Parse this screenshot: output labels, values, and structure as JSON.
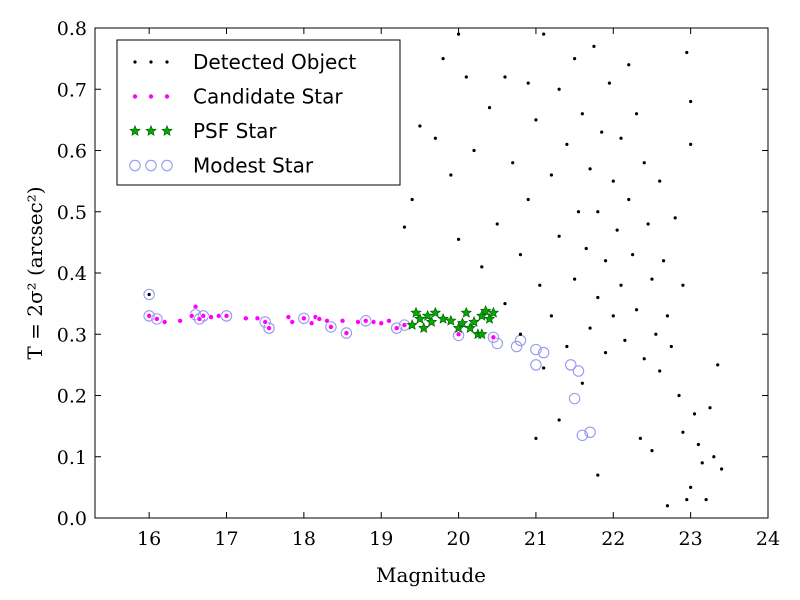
{
  "chart_data": {
    "type": "scatter",
    "xlabel": "Magnitude",
    "ylabel": "T = 2σ² (arcsec²)",
    "xlim": [
      15.3,
      24.0
    ],
    "ylim": [
      0.0,
      0.8
    ],
    "x_ticks": [
      16,
      17,
      18,
      19,
      20,
      21,
      22,
      23,
      24
    ],
    "y_ticks": [
      0.0,
      0.1,
      0.2,
      0.3,
      0.4,
      0.5,
      0.6,
      0.7,
      0.8
    ],
    "x_tick_labels": [
      "16",
      "17",
      "18",
      "19",
      "20",
      "21",
      "22",
      "23",
      "24"
    ],
    "y_tick_labels": [
      "0.0",
      "0.1",
      "0.2",
      "0.3",
      "0.4",
      "0.5",
      "0.6",
      "0.7",
      "0.8"
    ],
    "grid": false,
    "legend_position": "top-left",
    "series": [
      {
        "name": "Detected Object",
        "marker": "dot",
        "color": "#000000",
        "points": [
          [
            16.0,
            0.365
          ],
          [
            19.3,
            0.475
          ],
          [
            19.4,
            0.52
          ],
          [
            19.5,
            0.64
          ],
          [
            19.7,
            0.62
          ],
          [
            19.8,
            0.75
          ],
          [
            19.9,
            0.56
          ],
          [
            20.0,
            0.79
          ],
          [
            20.0,
            0.455
          ],
          [
            20.1,
            0.72
          ],
          [
            20.2,
            0.6
          ],
          [
            20.3,
            0.41
          ],
          [
            20.4,
            0.67
          ],
          [
            20.5,
            0.48
          ],
          [
            20.6,
            0.72
          ],
          [
            20.6,
            0.35
          ],
          [
            20.7,
            0.58
          ],
          [
            20.8,
            0.3
          ],
          [
            20.8,
            0.43
          ],
          [
            20.9,
            0.71
          ],
          [
            20.9,
            0.52
          ],
          [
            21.0,
            0.65
          ],
          [
            21.0,
            0.13
          ],
          [
            21.05,
            0.38
          ],
          [
            21.1,
            0.79
          ],
          [
            21.1,
            0.245
          ],
          [
            21.2,
            0.56
          ],
          [
            21.2,
            0.33
          ],
          [
            21.3,
            0.7
          ],
          [
            21.3,
            0.46
          ],
          [
            21.3,
            0.16
          ],
          [
            21.4,
            0.61
          ],
          [
            21.4,
            0.28
          ],
          [
            21.5,
            0.75
          ],
          [
            21.5,
            0.39
          ],
          [
            21.55,
            0.5
          ],
          [
            21.6,
            0.66
          ],
          [
            21.6,
            0.22
          ],
          [
            21.65,
            0.44
          ],
          [
            21.7,
            0.57
          ],
          [
            21.7,
            0.31
          ],
          [
            21.75,
            0.77
          ],
          [
            21.8,
            0.5
          ],
          [
            21.8,
            0.36
          ],
          [
            21.8,
            0.07
          ],
          [
            21.85,
            0.63
          ],
          [
            21.9,
            0.42
          ],
          [
            21.9,
            0.27
          ],
          [
            21.95,
            0.71
          ],
          [
            22.0,
            0.55
          ],
          [
            22.0,
            0.33
          ],
          [
            22.05,
            0.47
          ],
          [
            22.1,
            0.62
          ],
          [
            22.1,
            0.38
          ],
          [
            22.15,
            0.29
          ],
          [
            22.2,
            0.74
          ],
          [
            22.2,
            0.52
          ],
          [
            22.25,
            0.43
          ],
          [
            22.3,
            0.66
          ],
          [
            22.3,
            0.34
          ],
          [
            22.35,
            0.13
          ],
          [
            22.4,
            0.58
          ],
          [
            22.4,
            0.26
          ],
          [
            22.45,
            0.48
          ],
          [
            22.5,
            0.39
          ],
          [
            22.5,
            0.11
          ],
          [
            22.55,
            0.3
          ],
          [
            22.6,
            0.55
          ],
          [
            22.6,
            0.24
          ],
          [
            22.65,
            0.42
          ],
          [
            22.7,
            0.33
          ],
          [
            22.75,
            0.28
          ],
          [
            22.8,
            0.49
          ],
          [
            22.85,
            0.2
          ],
          [
            22.9,
            0.38
          ],
          [
            22.9,
            0.14
          ],
          [
            22.95,
            0.76
          ],
          [
            23.0,
            0.61
          ],
          [
            23.0,
            0.05
          ],
          [
            23.05,
            0.17
          ],
          [
            23.1,
            0.12
          ],
          [
            23.15,
            0.09
          ],
          [
            23.2,
            0.03
          ],
          [
            23.25,
            0.18
          ],
          [
            23.3,
            0.1
          ],
          [
            23.35,
            0.25
          ],
          [
            23.4,
            0.08
          ],
          [
            22.95,
            0.03
          ],
          [
            22.7,
            0.02
          ],
          [
            23.0,
            0.68
          ]
        ]
      },
      {
        "name": "Candidate Star",
        "marker": "circle-small",
        "color": "#ff00ff",
        "points": [
          [
            16.0,
            0.33
          ],
          [
            16.1,
            0.325
          ],
          [
            16.2,
            0.32
          ],
          [
            16.4,
            0.322
          ],
          [
            16.55,
            0.33
          ],
          [
            16.6,
            0.345
          ],
          [
            16.65,
            0.325
          ],
          [
            16.7,
            0.33
          ],
          [
            16.8,
            0.328
          ],
          [
            16.9,
            0.33
          ],
          [
            17.0,
            0.33
          ],
          [
            17.25,
            0.326
          ],
          [
            17.4,
            0.326
          ],
          [
            17.5,
            0.32
          ],
          [
            17.55,
            0.31
          ],
          [
            17.8,
            0.328
          ],
          [
            17.85,
            0.32
          ],
          [
            18.0,
            0.326
          ],
          [
            18.1,
            0.318
          ],
          [
            18.15,
            0.328
          ],
          [
            18.2,
            0.325
          ],
          [
            18.3,
            0.322
          ],
          [
            18.35,
            0.312
          ],
          [
            18.5,
            0.322
          ],
          [
            18.55,
            0.302
          ],
          [
            18.7,
            0.32
          ],
          [
            18.8,
            0.322
          ],
          [
            18.9,
            0.32
          ],
          [
            19.0,
            0.318
          ],
          [
            19.1,
            0.322
          ],
          [
            19.2,
            0.31
          ],
          [
            19.3,
            0.315
          ],
          [
            20.0,
            0.3
          ],
          [
            20.45,
            0.295
          ]
        ]
      },
      {
        "name": "PSF Star",
        "marker": "star",
        "color": "#00aa00",
        "points": [
          [
            19.4,
            0.315
          ],
          [
            19.45,
            0.335
          ],
          [
            19.5,
            0.325
          ],
          [
            19.55,
            0.31
          ],
          [
            19.6,
            0.33
          ],
          [
            19.65,
            0.32
          ],
          [
            19.7,
            0.335
          ],
          [
            19.8,
            0.325
          ],
          [
            19.9,
            0.322
          ],
          [
            20.0,
            0.31
          ],
          [
            20.05,
            0.318
          ],
          [
            20.1,
            0.335
          ],
          [
            20.15,
            0.31
          ],
          [
            20.2,
            0.32
          ],
          [
            20.25,
            0.3
          ],
          [
            20.3,
            0.33
          ],
          [
            20.35,
            0.338
          ],
          [
            20.4,
            0.325
          ],
          [
            20.45,
            0.335
          ],
          [
            20.3,
            0.3
          ]
        ]
      },
      {
        "name": "Modest Star",
        "marker": "ring",
        "color": "#9999ee",
        "points": [
          [
            16.0,
            0.365
          ],
          [
            16.0,
            0.33
          ],
          [
            16.1,
            0.325
          ],
          [
            16.6,
            0.332
          ],
          [
            16.65,
            0.325
          ],
          [
            16.7,
            0.33
          ],
          [
            17.0,
            0.33
          ],
          [
            17.5,
            0.32
          ],
          [
            17.55,
            0.31
          ],
          [
            18.0,
            0.326
          ],
          [
            18.35,
            0.312
          ],
          [
            18.55,
            0.302
          ],
          [
            18.8,
            0.322
          ],
          [
            19.2,
            0.31
          ],
          [
            19.3,
            0.315
          ],
          [
            20.0,
            0.298
          ],
          [
            20.45,
            0.295
          ],
          [
            20.5,
            0.285
          ],
          [
            20.75,
            0.28
          ],
          [
            20.8,
            0.29
          ],
          [
            21.0,
            0.25
          ],
          [
            21.0,
            0.275
          ],
          [
            21.1,
            0.27
          ],
          [
            21.45,
            0.25
          ],
          [
            21.5,
            0.195
          ],
          [
            21.55,
            0.24
          ],
          [
            21.6,
            0.135
          ],
          [
            21.7,
            0.14
          ]
        ]
      }
    ]
  }
}
